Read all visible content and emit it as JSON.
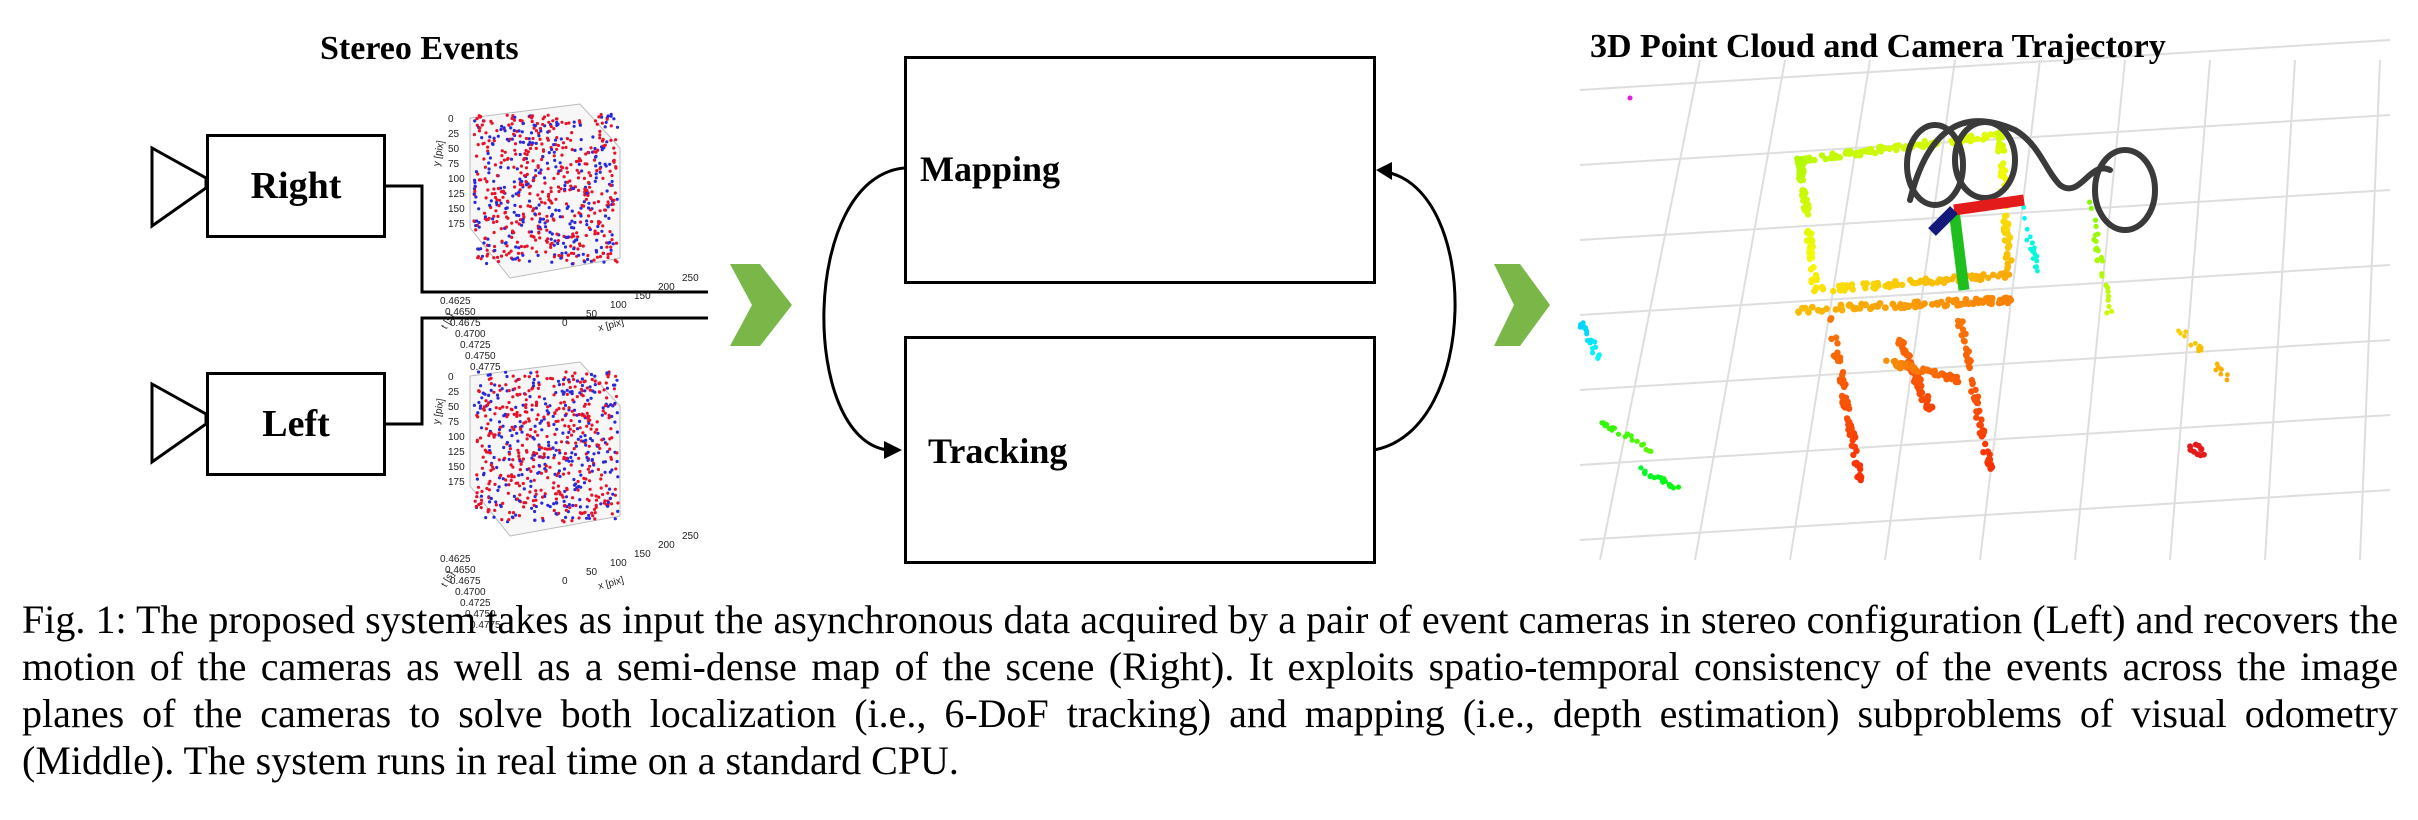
{
  "figure": {
    "stereo_title": "Stereo Events",
    "cloud_title": "3D Point Cloud and Camera Trajectory",
    "cameras": {
      "right_label": "Right",
      "left_label": "Left"
    },
    "plots": {
      "y_axis_label": "y [pix]",
      "y_ticks": [
        "0",
        "25",
        "50",
        "75",
        "100",
        "125",
        "150",
        "175"
      ],
      "x_axis_label": "x [pix]",
      "x_ticks": [
        "0",
        "50",
        "100",
        "150",
        "200",
        "250"
      ],
      "t_axis_label": "t [s]",
      "t_ticks": [
        "0.4625",
        "0.4650",
        "0.4675",
        "0.4700",
        "0.4725",
        "0.4750",
        "0.4775"
      ],
      "event_colors": {
        "positive": "#e8132a",
        "negative": "#2a2ad8"
      }
    },
    "modules": {
      "mapping_label": "Mapping",
      "tracking_label": "Tracking"
    },
    "arrow_color": "#7ab648"
  },
  "caption": {
    "text": "Fig. 1: The proposed system takes as input the asynchronous data acquired by a pair of event cameras in stereo configuration (Left) and recovers the motion of the cameras as well as a semi-dense map of the scene (Right). It exploits spatio-temporal consistency of the events across the image planes of the cameras to solve both localization (i.e., 6-DoF tracking) and mapping (i.e., depth estimation) subproblems of visual odometry (Middle). The system runs in real time on a standard CPU."
  }
}
